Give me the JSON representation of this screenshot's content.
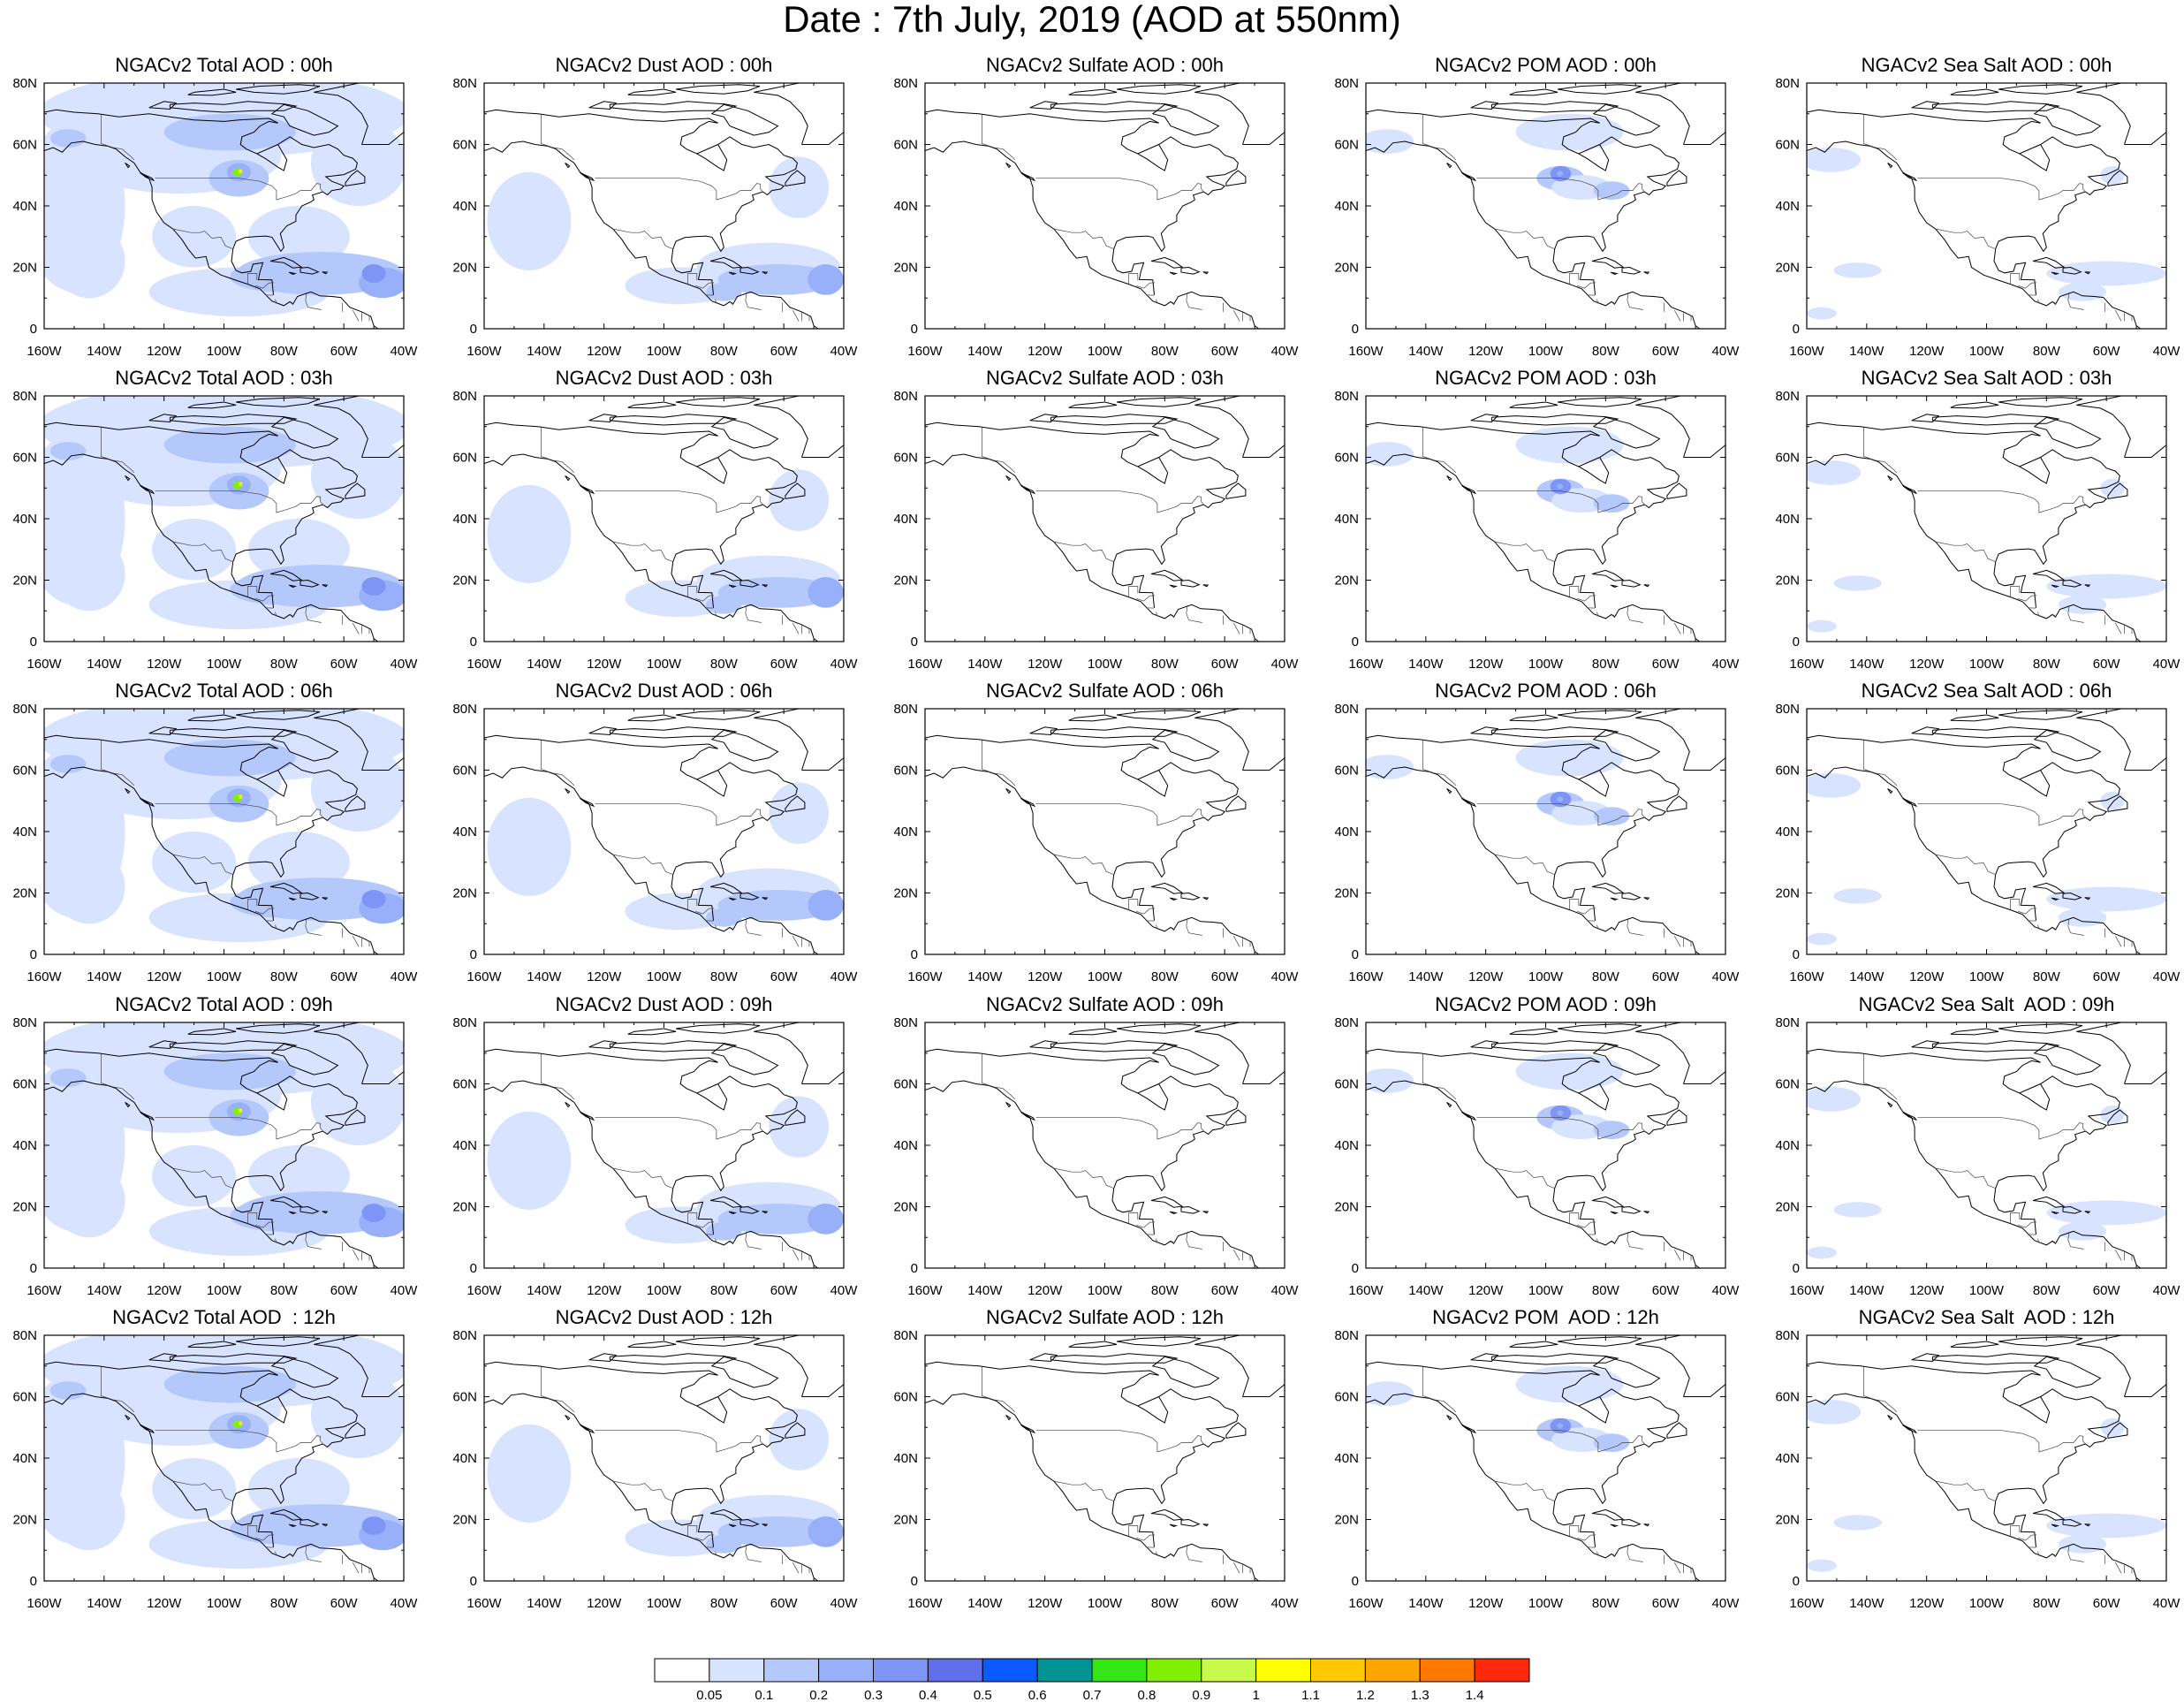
{
  "title": "Date : 7th July, 2019 (AOD at 550nm)",
  "lon_labels": [
    "160W",
    "140W",
    "120W",
    "100W",
    "80W",
    "60W",
    "40W"
  ],
  "lat_labels": [
    "0",
    "20N",
    "40N",
    "60N",
    "80N"
  ],
  "panels": [
    {
      "title": "NGACv2 Total AOD : 00h",
      "species": "total"
    },
    {
      "title": "NGACv2 Dust AOD : 00h",
      "species": "dust"
    },
    {
      "title": "NGACv2 Sulfate AOD : 00h",
      "species": "sulfate"
    },
    {
      "title": "NGACv2 POM AOD : 00h",
      "species": "pom"
    },
    {
      "title": "NGACv2 Sea Salt AOD : 00h",
      "species": "seasalt"
    },
    {
      "title": "NGACv2 Total AOD : 03h",
      "species": "total"
    },
    {
      "title": "NGACv2 Dust AOD : 03h",
      "species": "dust"
    },
    {
      "title": "NGACv2 Sulfate AOD : 03h",
      "species": "sulfate"
    },
    {
      "title": "NGACv2 POM AOD : 03h",
      "species": "pom"
    },
    {
      "title": "NGACv2 Sea Salt AOD : 03h",
      "species": "seasalt"
    },
    {
      "title": "NGACv2 Total AOD : 06h",
      "species": "total"
    },
    {
      "title": "NGACv2 Dust AOD : 06h",
      "species": "dust"
    },
    {
      "title": "NGACv2 Sulfate AOD : 06h",
      "species": "sulfate"
    },
    {
      "title": "NGACv2 POM AOD : 06h",
      "species": "pom"
    },
    {
      "title": "NGACv2 Sea Salt AOD : 06h",
      "species": "seasalt"
    },
    {
      "title": "NGACv2 Total AOD : 09h",
      "species": "total"
    },
    {
      "title": "NGACv2 Dust AOD : 09h",
      "species": "dust"
    },
    {
      "title": "NGACv2 Sulfate AOD : 09h",
      "species": "sulfate"
    },
    {
      "title": "NGACv2 POM AOD : 09h",
      "species": "pom"
    },
    {
      "title": "NGACv2 Sea Salt  AOD : 09h",
      "species": "seasalt"
    },
    {
      "title": "NGACv2 Total AOD  : 12h",
      "species": "total"
    },
    {
      "title": "NGACv2 Dust AOD : 12h",
      "species": "dust"
    },
    {
      "title": "NGACv2 Sulfate AOD : 12h",
      "species": "sulfate"
    },
    {
      "title": "NGACv2 POM  AOD : 12h",
      "species": "pom"
    },
    {
      "title": "NGACv2 Sea Salt  AOD : 12h",
      "species": "seasalt"
    }
  ],
  "colorbar": {
    "labels": [
      "0.05",
      "0.1",
      "0.2",
      "0.3",
      "0.4",
      "0.5",
      "0.6",
      "0.7",
      "0.8",
      "0.9",
      "1",
      "1.1",
      "1.2",
      "1.3",
      "1.4"
    ],
    "colors": [
      "#ffffff",
      "#d7e3ff",
      "#b4c8fc",
      "#98b0fa",
      "#7f95f5",
      "#5f6fec",
      "#0a5aff",
      "#009494",
      "#33e614",
      "#80f000",
      "#c8fa4b",
      "#ffff00",
      "#ffc800",
      "#ffa500",
      "#ff7800",
      "#ff280a"
    ]
  },
  "colors": {
    "map_light": "#d7e3ff",
    "map_medium": "#b4c8fc",
    "map_dark": "#98b0fa",
    "map_darker": "#7f95f5",
    "hotspot_green": "#80f000",
    "hotspot_yellow": "#ffff00"
  }
}
